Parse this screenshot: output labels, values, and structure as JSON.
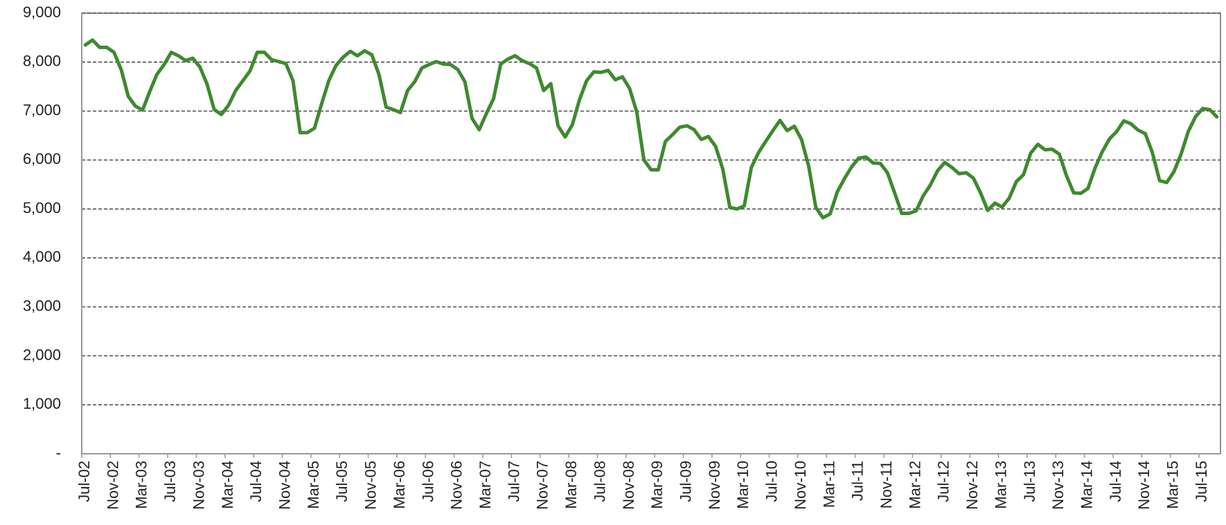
{
  "chart_data": {
    "type": "line",
    "categories": [
      "Jul-02",
      null,
      null,
      null,
      "Nov-02",
      null,
      null,
      null,
      "Mar-03",
      null,
      null,
      null,
      "Jul-03",
      null,
      null,
      null,
      "Nov-03",
      null,
      null,
      null,
      "Mar-04",
      null,
      null,
      null,
      "Jul-04",
      null,
      null,
      null,
      "Nov-04",
      null,
      null,
      null,
      "Mar-05",
      null,
      null,
      null,
      "Jul-05",
      null,
      null,
      null,
      "Nov-05",
      null,
      null,
      null,
      "Mar-06",
      null,
      null,
      null,
      "Jul-06",
      null,
      null,
      null,
      "Nov-06",
      null,
      null,
      null,
      "Mar-07",
      null,
      null,
      null,
      "Jul-07",
      null,
      null,
      null,
      "Nov-07",
      null,
      null,
      null,
      "Mar-08",
      null,
      null,
      null,
      "Jul-08",
      null,
      null,
      null,
      "Nov-08",
      null,
      null,
      null,
      "Mar-09",
      null,
      null,
      null,
      "Jul-09",
      null,
      null,
      null,
      "Nov-09",
      null,
      null,
      null,
      "Mar-10",
      null,
      null,
      null,
      "Jul-10",
      null,
      null,
      null,
      "Nov-10",
      null,
      null,
      null,
      "Mar-11",
      null,
      null,
      null,
      "Jul-11",
      null,
      null,
      null,
      "Nov-11",
      null,
      null,
      null,
      "Mar-12",
      null,
      null,
      null,
      "Jul-12",
      null,
      null,
      null,
      "Nov-12",
      null,
      null,
      null,
      "Mar-13",
      null,
      null,
      null,
      "Jul-13",
      null,
      null,
      null,
      "Nov-13",
      null,
      null,
      null,
      "Mar-14",
      null,
      null,
      null,
      "Jul-14",
      null,
      null,
      null,
      "Nov-14",
      null,
      null,
      null,
      "Mar-15",
      null,
      null,
      null,
      "Jul-15",
      null,
      null
    ],
    "values": [
      8350,
      8450,
      8300,
      8300,
      8200,
      7850,
      7300,
      7100,
      7020,
      7400,
      7750,
      7950,
      8200,
      8130,
      8030,
      8080,
      7900,
      7550,
      7030,
      6930,
      7120,
      7420,
      7620,
      7820,
      8200,
      8200,
      8050,
      8010,
      7970,
      7620,
      6560,
      6560,
      6650,
      7150,
      7620,
      7930,
      8100,
      8220,
      8130,
      8230,
      8150,
      7750,
      7080,
      7030,
      6970,
      7420,
      7600,
      7880,
      7950,
      8010,
      7960,
      7950,
      7850,
      7600,
      6850,
      6620,
      6950,
      7250,
      7960,
      8060,
      8130,
      8030,
      7970,
      7880,
      7420,
      7560,
      6700,
      6470,
      6720,
      7230,
      7620,
      7800,
      7790,
      7830,
      7640,
      7700,
      7460,
      6980,
      6000,
      5800,
      5800,
      6380,
      6520,
      6670,
      6700,
      6620,
      6420,
      6480,
      6280,
      5820,
      5030,
      5000,
      5060,
      5850,
      6150,
      6380,
      6600,
      6810,
      6600,
      6690,
      6420,
      5880,
      5030,
      4820,
      4900,
      5350,
      5620,
      5860,
      6040,
      6060,
      5940,
      5930,
      5740,
      5330,
      4910,
      4910,
      4960,
      5270,
      5490,
      5780,
      5950,
      5850,
      5720,
      5740,
      5630,
      5330,
      4970,
      5120,
      5040,
      5220,
      5560,
      5700,
      6140,
      6320,
      6210,
      6220,
      6120,
      5680,
      5330,
      5320,
      5420,
      5840,
      6170,
      6430,
      6580,
      6800,
      6740,
      6610,
      6540,
      6150,
      5580,
      5540,
      5760,
      6120,
      6580,
      6880,
      7050,
      7030,
      6880
    ],
    "color": "#3e8a2e",
    "ylim": [
      0,
      9000
    ],
    "yticks": [
      {
        "value": 0,
        "label": "-"
      },
      {
        "value": 1000,
        "label": "1,000"
      },
      {
        "value": 2000,
        "label": "2,000"
      },
      {
        "value": 3000,
        "label": "3,000"
      },
      {
        "value": 4000,
        "label": "4,000"
      },
      {
        "value": 5000,
        "label": "5,000"
      },
      {
        "value": 6000,
        "label": "6,000"
      },
      {
        "value": 7000,
        "label": "7,000"
      },
      {
        "value": 8000,
        "label": "8,000"
      },
      {
        "value": 9000,
        "label": "9,000"
      }
    ],
    "grid": true
  }
}
